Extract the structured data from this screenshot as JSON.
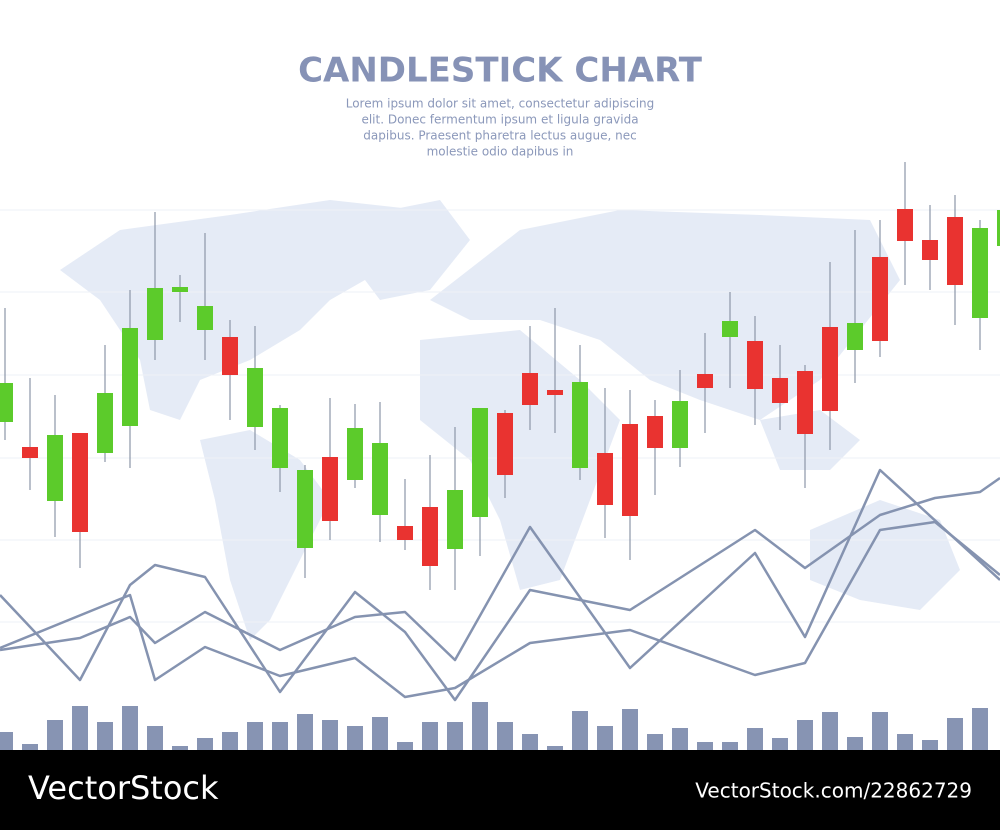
{
  "chart_data": [
    {
      "type": "candlestick",
      "title": "CANDLESTICK CHART",
      "subtitle": [
        "Lorem ipsum dolor sit amet, consectetur adipiscing",
        "elit. Donec fermentum ipsum et ligula gravida",
        "dapibus. Praesent pharetra lectus augue, nec",
        "molestie odio dapibus in"
      ],
      "x": [
        5,
        30,
        55,
        80,
        105,
        130,
        155,
        180,
        205,
        230,
        255,
        280,
        305,
        330,
        355,
        380,
        405,
        430,
        455,
        480,
        505,
        530,
        555,
        580,
        605,
        630,
        655,
        680,
        705,
        730,
        755,
        780,
        805,
        830,
        855,
        880,
        905,
        930,
        955,
        980,
        1005
      ],
      "open": [
        328,
        303,
        249,
        317,
        297,
        324,
        410,
        458,
        420,
        413,
        323,
        282,
        202,
        293,
        270,
        235,
        224,
        243,
        201,
        233,
        337,
        377,
        360,
        282,
        297,
        326,
        334,
        302,
        376,
        413,
        409,
        372,
        379,
        423,
        400,
        493,
        541,
        510,
        533,
        432,
        504
      ],
      "close": [
        367,
        292,
        315,
        218,
        357,
        422,
        462,
        463,
        444,
        375,
        382,
        342,
        280,
        229,
        322,
        307,
        210,
        184,
        260,
        342,
        275,
        345,
        355,
        368,
        245,
        234,
        302,
        349,
        362,
        429,
        361,
        347,
        316,
        339,
        427,
        409,
        509,
        490,
        465,
        522,
        540
      ],
      "high": [
        442,
        372,
        355,
        317,
        405,
        460,
        538,
        475,
        517,
        430,
        424,
        345,
        285,
        352,
        346,
        348,
        271,
        295,
        323,
        342,
        340,
        424,
        442,
        405,
        362,
        360,
        350,
        380,
        417,
        458,
        434,
        405,
        385,
        488,
        520,
        530,
        588,
        545,
        555,
        530,
        560
      ],
      "low": [
        310,
        260,
        213,
        182,
        288,
        282,
        390,
        428,
        390,
        330,
        300,
        258,
        172,
        210,
        262,
        208,
        200,
        160,
        160,
        194,
        252,
        320,
        317,
        270,
        212,
        190,
        255,
        283,
        317,
        362,
        325,
        320,
        262,
        300,
        367,
        393,
        465,
        460,
        425,
        400,
        480
      ],
      "up_color": "#5ccb2b",
      "down_color": "#e93330",
      "xlim": [
        0,
        1000
      ],
      "ylim": [
        0,
        590
      ]
    },
    {
      "type": "bar",
      "x": [
        5,
        30,
        55,
        80,
        105,
        130,
        155,
        180,
        205,
        230,
        255,
        280,
        305,
        330,
        355,
        380,
        405,
        430,
        455,
        480,
        505,
        530,
        555,
        580,
        605,
        630,
        655,
        680,
        705,
        730,
        755,
        780,
        805,
        830,
        855,
        880,
        905,
        930,
        955,
        980
      ],
      "values": [
        18,
        6,
        30,
        44,
        28,
        44,
        24,
        4,
        12,
        18,
        28,
        28,
        36,
        30,
        24,
        33,
        8,
        28,
        28,
        48,
        28,
        16,
        4,
        39,
        24,
        41,
        16,
        22,
        8,
        8,
        22,
        12,
        30,
        38,
        13,
        38,
        16,
        10,
        32,
        42
      ],
      "color": "#8794b3",
      "xlim": [
        0,
        1000
      ],
      "ylim": [
        0,
        590
      ]
    },
    {
      "type": "line",
      "series": [
        {
          "color": "#8593b0",
          "x": [
            0,
            80,
            130,
            155,
            205,
            280,
            355,
            405,
            455,
            530,
            630,
            755,
            805,
            880,
            935,
            980,
            1000
          ],
          "values": [
            155,
            70,
            165,
            185,
            173,
            58,
            158,
            118,
            50,
            160,
            140,
            220,
            182,
            235,
            252,
            258,
            272
          ]
        },
        {
          "color": "#8593b0",
          "x": [
            0,
            80,
            130,
            155,
            205,
            280,
            355,
            405,
            455,
            530,
            630,
            755,
            805,
            880,
            1000
          ],
          "values": [
            100,
            112,
            133,
            107,
            138,
            100,
            133,
            138,
            90,
            223,
            82,
            197,
            113,
            280,
            170
          ]
        },
        {
          "color": "#8593b0",
          "x": [
            0,
            130,
            155,
            205,
            280,
            355,
            405,
            455,
            530,
            630,
            755,
            805,
            880,
            935,
            1000
          ],
          "values": [
            102,
            155,
            70,
            103,
            74,
            92,
            53,
            62,
            107,
            120,
            75,
            87,
            220,
            228,
            175
          ]
        }
      ],
      "xlim": [
        0,
        1000
      ],
      "ylim": [
        0,
        590
      ]
    }
  ],
  "footer": {
    "brand": "VectorStock",
    "id": "VectorStock.com/22862729"
  }
}
